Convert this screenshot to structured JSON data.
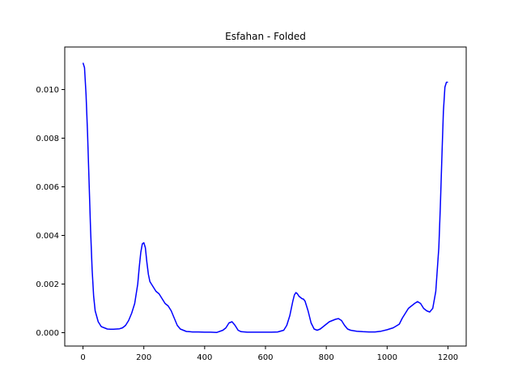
{
  "chart_data": {
    "type": "line",
    "title": "Esfahan - Folded",
    "xlabel": "",
    "ylabel": "",
    "xlim": [
      -60,
      1260
    ],
    "ylim": [
      -0.00055,
      0.01175
    ],
    "x_ticks": [
      0,
      200,
      400,
      600,
      800,
      1000,
      1200
    ],
    "x_tick_labels": [
      "0",
      "200",
      "400",
      "600",
      "800",
      "1000",
      "1200"
    ],
    "y_ticks": [
      0,
      0.002,
      0.004,
      0.006,
      0.008,
      0.01
    ],
    "y_tick_labels": [
      "0.000",
      "0.002",
      "0.004",
      "0.006",
      "0.008",
      "0.010"
    ],
    "grid": false,
    "colors": {
      "line": "#0000ff",
      "axes": "#000000",
      "background": "#ffffff"
    },
    "series": [
      {
        "x": [
          0,
          5,
          10,
          15,
          20,
          25,
          30,
          35,
          40,
          50,
          60,
          70,
          80,
          90,
          100,
          110,
          120,
          130,
          140,
          150,
          160,
          170,
          180,
          185,
          190,
          195,
          200,
          205,
          210,
          215,
          220,
          230,
          240,
          250,
          260,
          270,
          280,
          290,
          300,
          310,
          320,
          330,
          340,
          350,
          360,
          380,
          400,
          420,
          440,
          460,
          470,
          480,
          490,
          500,
          510,
          520,
          540,
          560,
          580,
          600,
          620,
          640,
          660,
          670,
          680,
          690,
          695,
          700,
          705,
          710,
          715,
          720,
          725,
          730,
          740,
          750,
          760,
          770,
          780,
          790,
          800,
          810,
          820,
          830,
          840,
          850,
          860,
          870,
          880,
          900,
          920,
          940,
          960,
          980,
          1000,
          1020,
          1040,
          1050,
          1060,
          1070,
          1080,
          1090,
          1100,
          1110,
          1120,
          1130,
          1140,
          1150,
          1160,
          1170,
          1175,
          1180,
          1185,
          1190,
          1195,
          1200
        ],
        "y": [
          0.0111,
          0.0109,
          0.0098,
          0.0082,
          0.0062,
          0.0042,
          0.0026,
          0.0015,
          0.0009,
          0.00045,
          0.00025,
          0.0002,
          0.00015,
          0.00014,
          0.00014,
          0.00015,
          0.00016,
          0.0002,
          0.0003,
          0.0005,
          0.0008,
          0.0012,
          0.002,
          0.0027,
          0.0033,
          0.00365,
          0.0037,
          0.0035,
          0.0029,
          0.0024,
          0.0021,
          0.0019,
          0.0017,
          0.0016,
          0.0014,
          0.0012,
          0.0011,
          0.0009,
          0.0006,
          0.0003,
          0.00015,
          0.0001,
          5e-05,
          4e-05,
          3e-05,
          3e-05,
          2e-05,
          2e-05,
          1e-05,
          0.0001,
          0.0002,
          0.0004,
          0.00045,
          0.0003,
          0.0001,
          4e-05,
          2e-05,
          2e-05,
          2e-05,
          2e-05,
          2e-05,
          3e-05,
          0.0001,
          0.0003,
          0.0007,
          0.0013,
          0.00155,
          0.00165,
          0.0016,
          0.0015,
          0.00145,
          0.0014,
          0.00138,
          0.0013,
          0.0009,
          0.0004,
          0.00015,
          0.0001,
          0.00015,
          0.00025,
          0.00035,
          0.00045,
          0.0005,
          0.00055,
          0.00058,
          0.0005,
          0.0003,
          0.00015,
          0.0001,
          6e-05,
          4e-05,
          3e-05,
          3e-05,
          6e-05,
          0.00012,
          0.0002,
          0.00035,
          0.0006,
          0.0008,
          0.001,
          0.0011,
          0.0012,
          0.00128,
          0.0012,
          0.001,
          0.0009,
          0.00085,
          0.001,
          0.0017,
          0.0035,
          0.0052,
          0.0072,
          0.0091,
          0.0101,
          0.0103,
          0.0103
        ]
      }
    ]
  }
}
